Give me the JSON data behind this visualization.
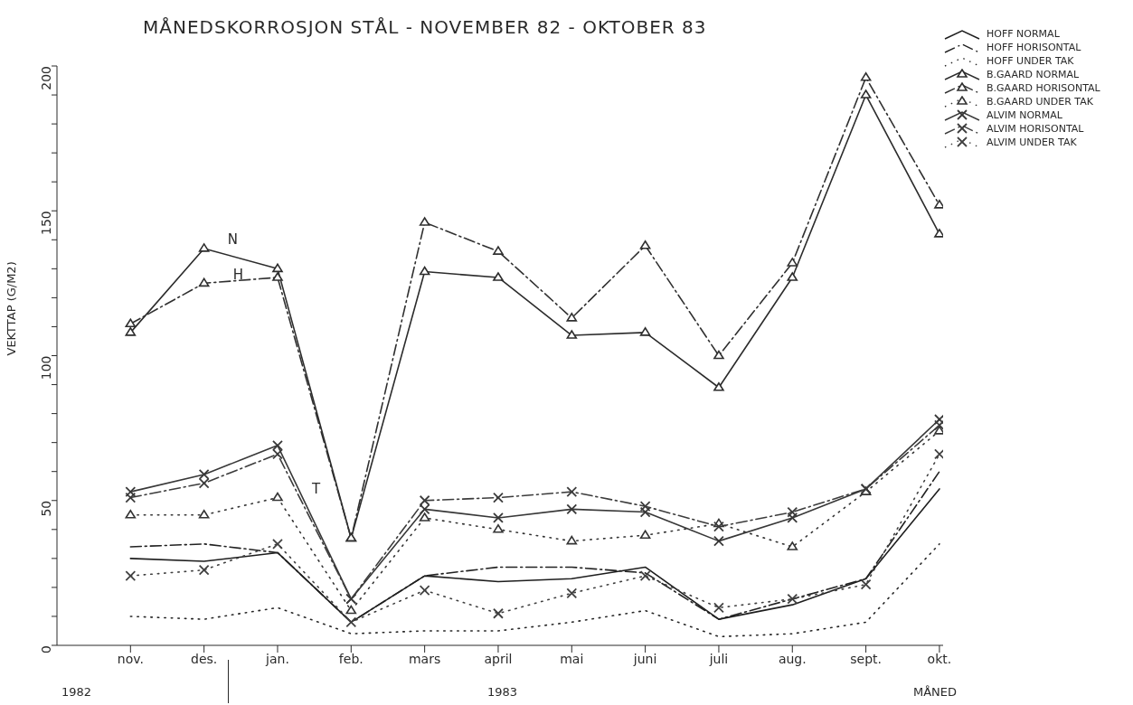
{
  "chart_data": {
    "type": "line",
    "title": "MÅNEDSKORROSJON STÅL -  NOVEMBER 82 - OKTOBER 83",
    "ylabel": "VEKTTAP (G/M2)",
    "categories": [
      "nov.",
      "des.",
      "jan.",
      "feb.",
      "mars",
      "april",
      "mai",
      "juni",
      "juli",
      "aug.",
      "sept.",
      "okt."
    ],
    "ylim": [
      0,
      200
    ],
    "yticks": [
      0,
      {
        "value": 10,
        "label": null
      },
      {
        "value": 20,
        "label": null
      },
      {
        "value": 30,
        "label": null
      },
      {
        "value": 40,
        "label": null
      },
      50,
      {
        "value": 60,
        "label": null
      },
      {
        "value": 70,
        "label": null
      },
      {
        "value": 80,
        "label": null
      },
      {
        "value": 90,
        "label": null
      },
      100,
      {
        "value": 110,
        "label": null
      },
      {
        "value": 120,
        "label": null
      },
      {
        "value": 130,
        "label": null
      },
      {
        "value": 140,
        "label": null
      },
      150,
      {
        "value": 160,
        "label": null
      },
      {
        "value": 170,
        "label": null
      },
      {
        "value": 180,
        "label": null
      },
      {
        "value": 190,
        "label": null
      },
      200
    ],
    "legend": "top right",
    "series": [
      {
        "name": "HOFF NORMAL",
        "color": "#1e1e1e",
        "line_style": "solid",
        "marker": "none",
        "values": [
          30,
          29,
          32,
          8,
          24,
          22,
          23,
          27,
          9,
          14,
          23,
          54
        ]
      },
      {
        "name": "HOFF HORISONTAL",
        "color": "#222222",
        "line_style": "dashed",
        "marker": "none",
        "values": [
          34,
          35,
          32,
          8,
          24,
          27,
          27,
          25,
          9,
          16,
          23,
          60
        ]
      },
      {
        "name": "HOFF UNDER TAK",
        "color": "#262626",
        "line_style": "dotted",
        "marker": "none",
        "values": [
          10,
          9,
          13,
          4,
          5,
          5,
          8,
          12,
          3,
          4,
          8,
          35
        ]
      },
      {
        "name": "B.GAARD NORMAL",
        "color": "#2c2c2c",
        "line_style": "solid",
        "marker": "triangle",
        "values": [
          108,
          137,
          130,
          37,
          129,
          127,
          107,
          108,
          89,
          127,
          190,
          142
        ]
      },
      {
        "name": "B.GAARD HORISONTAL",
        "color": "#303030",
        "line_style": "dashed",
        "marker": "triangle",
        "values": [
          111,
          125,
          127,
          37,
          146,
          136,
          113,
          138,
          100,
          132,
          196,
          152
        ]
      },
      {
        "name": "B.GAARD UNDER TAK",
        "color": "#343434",
        "line_style": "dotted",
        "marker": "triangle",
        "values": [
          45,
          45,
          51,
          12,
          44,
          40,
          36,
          38,
          42,
          34,
          53,
          74
        ]
      },
      {
        "name": "ALVIM NORMAL",
        "color": "#383838",
        "line_style": "solid",
        "marker": "cross",
        "values": [
          53,
          59,
          69,
          16,
          47,
          44,
          47,
          46,
          36,
          44,
          54,
          78
        ]
      },
      {
        "name": "ALVIM HORISONTAL",
        "color": "#3c3c3c",
        "line_style": "dashed",
        "marker": "cross",
        "values": [
          51,
          56,
          66,
          16,
          50,
          51,
          53,
          48,
          41,
          46,
          54,
          76
        ]
      },
      {
        "name": "ALVIM UNDER TAK",
        "color": "#404040",
        "line_style": "dotted",
        "marker": "cross",
        "values": [
          24,
          26,
          35,
          8,
          19,
          11,
          18,
          24,
          13,
          16,
          21,
          66
        ]
      }
    ],
    "annotations": [
      {
        "text": "N",
        "x": "des.",
        "y": 137
      },
      {
        "text": "H",
        "x": "des.",
        "y": 125
      },
      {
        "text": "T",
        "x": "jan.",
        "y": 51
      },
      "1982",
      "1983",
      "MÅNED"
    ]
  }
}
